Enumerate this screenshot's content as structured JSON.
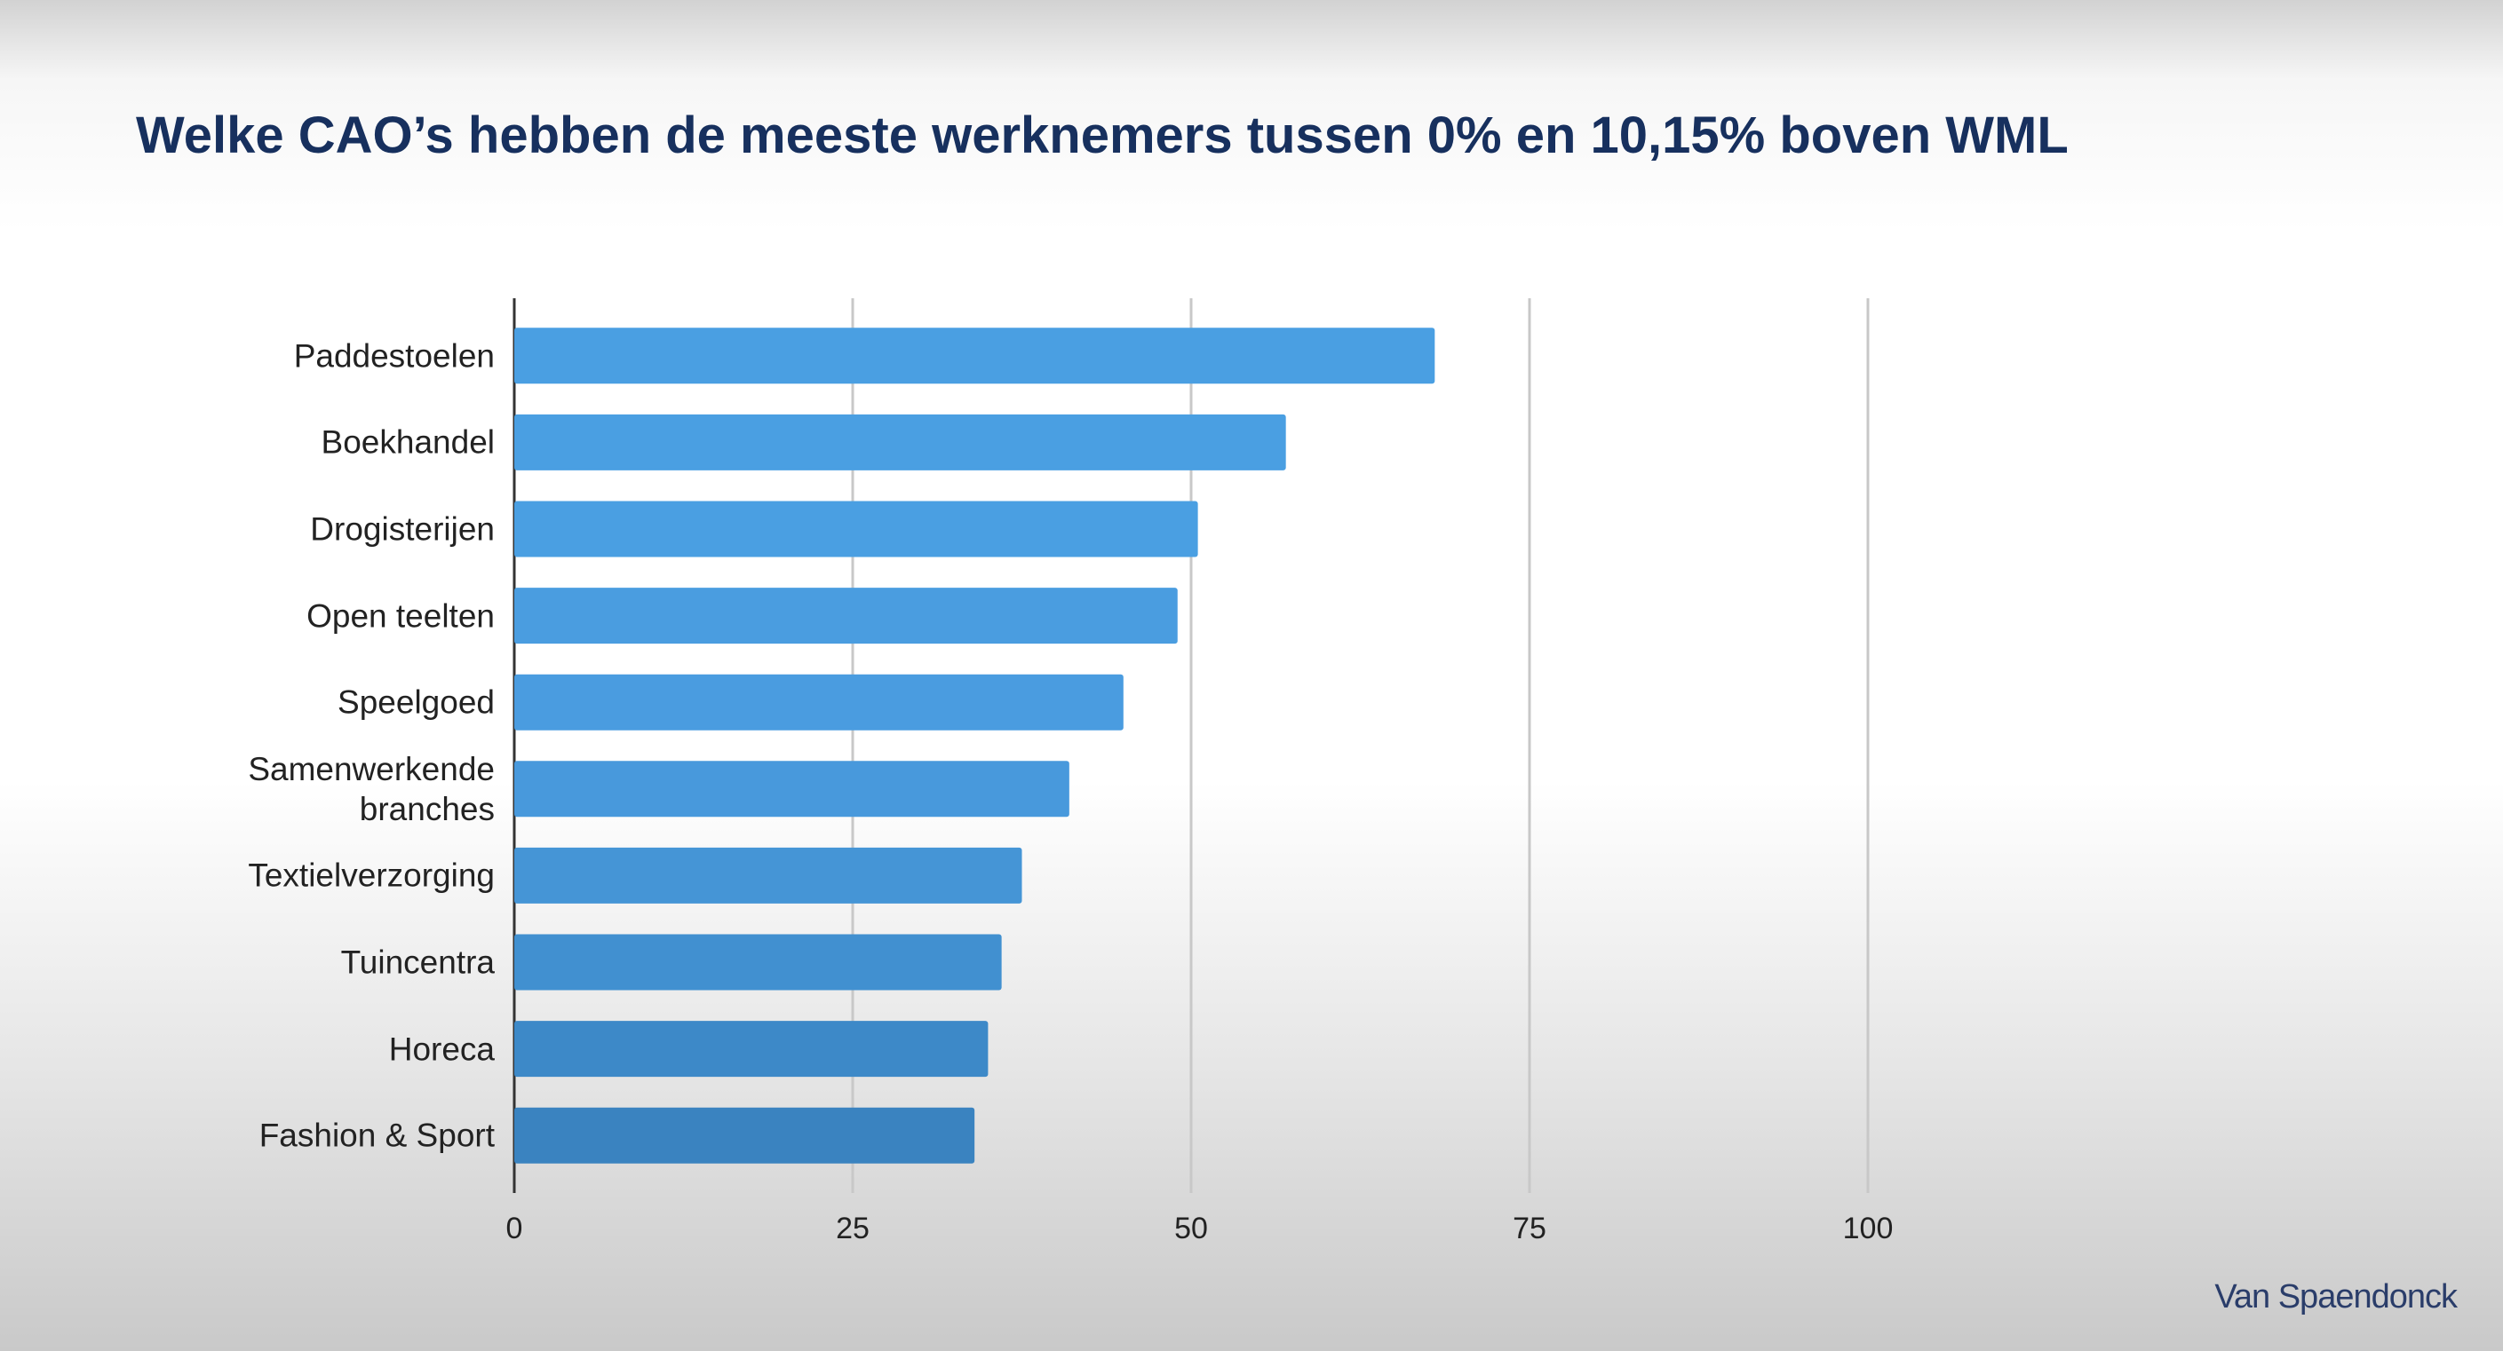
{
  "chart_data": {
    "type": "hbar",
    "title": "Welke CAO’s hebben de meeste werknemers tussen 0% en 10,15% boven WML",
    "categories": [
      "Paddestoelen",
      "Boekhandel",
      "Drogisterijen",
      "Open teelten",
      "Speelgoed",
      "Samenwerkende branches",
      "Textielverzorging",
      "Tuincentra",
      "Horeca",
      "Fashion & Sport"
    ],
    "values": [
      68,
      57,
      50.5,
      49,
      45,
      41,
      37.5,
      36,
      35,
      34
    ],
    "colors": [
      "#4a9fe2",
      "#4a9fe2",
      "#4a9fe2",
      "#4a9de0",
      "#4a9ce0",
      "#4899dc",
      "#4595d6",
      "#4190d0",
      "#3d89c8",
      "#3a83c0"
    ],
    "xlim": [
      0,
      100
    ],
    "xticks": [
      0,
      25,
      50,
      75,
      100
    ],
    "grid": true
  },
  "logo": "Van Spaendonck"
}
